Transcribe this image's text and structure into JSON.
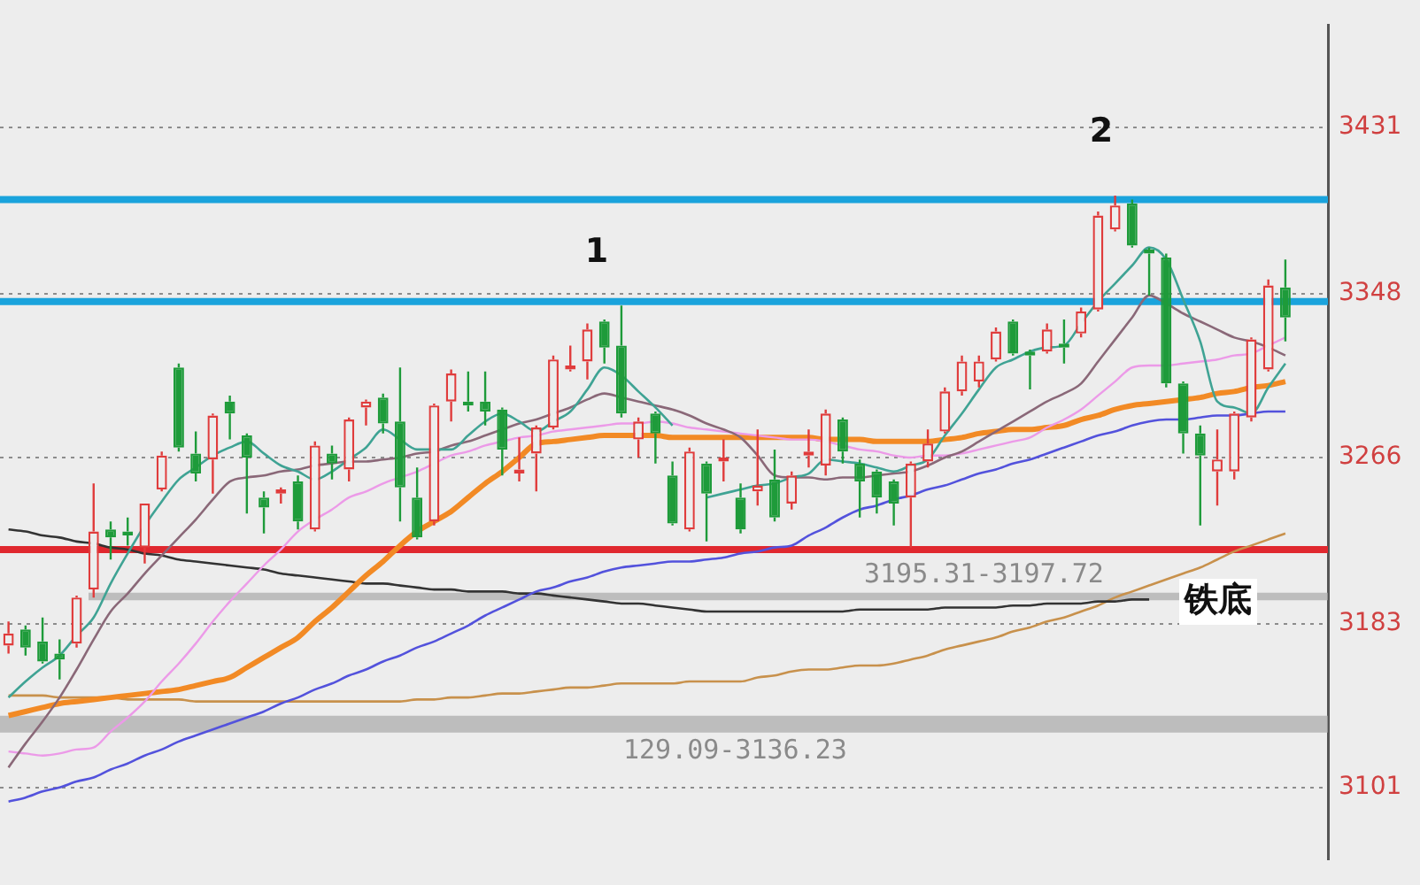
{
  "chart_data": {
    "type": "candlestick",
    "categories": [
      null,
      null,
      null,
      null,
      null,
      null,
      null,
      null,
      null,
      null,
      null,
      null,
      null,
      null,
      null,
      null,
      null,
      null,
      null,
      null,
      null,
      null,
      null,
      null,
      null,
      null,
      null,
      null,
      null,
      null,
      null,
      null,
      null,
      null,
      null,
      null,
      null,
      null,
      null,
      null,
      null,
      null,
      null,
      null,
      null,
      null,
      null,
      null,
      null,
      null,
      null,
      null,
      null,
      null,
      null,
      null,
      null,
      null,
      null,
      null,
      null,
      null,
      null,
      null,
      null,
      null,
      null,
      null,
      null,
      null,
      null,
      null,
      null,
      null,
      null,
      null,
      null,
      null
    ],
    "ohlc": [
      [
        3172,
        3184,
        3168,
        3178
      ],
      [
        3180,
        3182,
        3167,
        3171
      ],
      [
        3174,
        3186,
        3163,
        3164
      ],
      [
        3168,
        3175,
        3155,
        3165
      ],
      [
        3173,
        3197,
        3171,
        3196
      ],
      [
        3200,
        3253,
        3196,
        3229
      ],
      [
        3230,
        3234,
        3215,
        3226
      ],
      [
        3229,
        3236,
        3222,
        3227
      ],
      [
        3221,
        3243,
        3213,
        3243
      ],
      [
        3250,
        3269,
        3249,
        3267
      ],
      [
        3311,
        3313,
        3269,
        3271
      ],
      [
        3268,
        3279,
        3254,
        3258
      ],
      [
        3265,
        3288,
        3248,
        3287
      ],
      [
        3294,
        3297,
        3275,
        3288
      ],
      [
        3277,
        3278,
        3238,
        3266
      ],
      [
        3246,
        3249,
        3228,
        3241
      ],
      [
        3248,
        3251,
        3243,
        3250
      ],
      [
        3254,
        3257,
        3230,
        3234
      ],
      [
        3230,
        3274,
        3229,
        3272
      ],
      [
        3268,
        3272,
        3255,
        3263
      ],
      [
        3260,
        3286,
        3254,
        3285
      ],
      [
        3291,
        3295,
        3282,
        3294
      ],
      [
        3296,
        3298,
        3278,
        3283
      ],
      [
        3284,
        3311,
        3234,
        3251
      ],
      [
        3246,
        3261,
        3225,
        3226
      ],
      [
        3234,
        3293,
        3232,
        3292
      ],
      [
        3294,
        3310,
        3284,
        3308
      ],
      [
        3294,
        3309,
        3289,
        3292
      ],
      [
        3294,
        3309,
        3282,
        3289
      ],
      [
        3290,
        3291,
        3257,
        3270
      ],
      [
        3258,
        3276,
        3254,
        3260
      ],
      [
        3268,
        3282,
        3249,
        3281
      ],
      [
        3281,
        3317,
        3280,
        3315
      ],
      [
        3310,
        3322,
        3309,
        3312
      ],
      [
        3314,
        3333,
        3305,
        3330
      ],
      [
        3334,
        3335,
        3313,
        3321
      ],
      [
        3322,
        3342,
        3286,
        3288
      ],
      [
        3275,
        3286,
        3266,
        3284
      ],
      [
        3288,
        3289,
        3263,
        3278
      ],
      [
        3257,
        3264,
        3232,
        3233
      ],
      [
        3230,
        3271,
        3229,
        3269
      ],
      [
        3263,
        3264,
        3224,
        3248
      ],
      [
        3264,
        3275,
        3254,
        3266
      ],
      [
        3246,
        3253,
        3228,
        3230
      ],
      [
        3249,
        3280,
        3242,
        3252
      ],
      [
        3255,
        3270,
        3234,
        3236
      ],
      [
        3243,
        3259,
        3240,
        3257
      ],
      [
        3267,
        3280,
        3261,
        3269
      ],
      [
        3262,
        3290,
        3257,
        3288
      ],
      [
        3285,
        3286,
        3263,
        3269
      ],
      [
        3263,
        3265,
        3236,
        3254
      ],
      [
        3259,
        3260,
        3238,
        3246
      ],
      [
        3254,
        3255,
        3232,
        3243
      ],
      [
        3246,
        3264,
        3221,
        3263
      ],
      [
        3264,
        3280,
        3261,
        3273
      ],
      [
        3279,
        3301,
        3278,
        3299
      ],
      [
        3299,
        3317,
        3297,
        3314
      ],
      [
        3304,
        3317,
        3301,
        3314
      ],
      [
        3315,
        3331,
        3314,
        3329
      ],
      [
        3334,
        3335,
        3317,
        3318
      ],
      [
        3319,
        3320,
        3300,
        3317
      ],
      [
        3319,
        3333,
        3318,
        3330
      ],
      [
        3323,
        3335,
        3313,
        3321
      ],
      [
        3328,
        3341,
        3326,
        3339
      ],
      [
        3340,
        3389,
        3339,
        3387
      ],
      [
        3380,
        3397,
        3379,
        3392
      ],
      [
        3393,
        3395,
        3371,
        3372
      ],
      [
        3370,
        3371,
        3347,
        3368
      ],
      [
        3366,
        3368,
        3301,
        3303
      ],
      [
        3303,
        3304,
        3268,
        3278
      ],
      [
        3278,
        3282,
        3232,
        3267
      ],
      [
        3259,
        3280,
        3242,
        3265
      ],
      [
        3259,
        3289,
        3255,
        3288
      ],
      [
        3286,
        3326,
        3284,
        3325
      ],
      [
        3310,
        3355,
        3309,
        3352
      ],
      [
        3351,
        3365,
        3324,
        3336
      ],
      null,
      null
    ],
    "colors": [
      "#e03c3c",
      "#1e9b3a",
      "#1e9b3a",
      "#1e9b3a",
      "#e03c3c",
      "#e03c3c",
      "#1e9b3a",
      "#1e9b3a",
      "#e03c3c",
      "#e03c3c",
      "#1e9b3a",
      "#1e9b3a",
      "#e03c3c",
      "#1e9b3a",
      "#1e9b3a",
      "#1e9b3a",
      "#e03c3c",
      "#1e9b3a",
      "#e03c3c",
      "#1e9b3a",
      "#e03c3c",
      "#e03c3c",
      "#1e9b3a",
      "#1e9b3a",
      "#1e9b3a",
      "#e03c3c",
      "#e03c3c",
      "#1e9b3a",
      "#1e9b3a",
      "#1e9b3a",
      "#e03c3c",
      "#e03c3c",
      "#e03c3c",
      "#e03c3c",
      "#e03c3c",
      "#1e9b3a",
      "#1e9b3a",
      "#e03c3c",
      "#1e9b3a",
      "#1e9b3a",
      "#e03c3c",
      "#1e9b3a",
      "#e03c3c",
      "#1e9b3a",
      "#e03c3c",
      "#1e9b3a",
      "#e03c3c",
      "#e03c3c",
      "#e03c3c",
      "#1e9b3a",
      "#1e9b3a",
      "#1e9b3a",
      "#1e9b3a",
      "#e03c3c",
      "#e03c3c",
      "#e03c3c",
      "#e03c3c",
      "#e03c3c",
      "#e03c3c",
      "#1e9b3a",
      "#1e9b3a",
      "#e03c3c",
      "#1e9b3a",
      "#e03c3c",
      "#e03c3c",
      "#e03c3c",
      "#1e9b3a",
      "#1e9b3a",
      "#1e9b3a",
      "#1e9b3a",
      "#1e9b3a",
      "#e03c3c",
      "#e03c3c",
      "#e03c3c",
      "#e03c3c",
      "#1e9b3a",
      null,
      null
    ],
    "series": [
      {
        "type": "line",
        "color": "#3fa394",
        "values": [
          3146,
          3154,
          3161,
          3167,
          3177,
          3186,
          3203,
          3218,
          3232,
          3244,
          3255,
          3261,
          3267,
          3271,
          3274,
          3268,
          3262,
          3259,
          3255,
          3259,
          3265,
          3271,
          3280,
          3275,
          3270,
          3270,
          3270,
          3277,
          3284,
          3288,
          3284,
          3279,
          3284,
          3289,
          3300,
          3311,
          3307,
          3299,
          3291,
          3282,
          null,
          3246,
          3248,
          3250,
          3252,
          3253,
          3256,
          3258,
          3265,
          3264,
          3263,
          3261,
          3259,
          3262,
          3265,
          3277,
          3288,
          3300,
          3311,
          3315,
          3319,
          3321,
          3322,
          3333,
          3344,
          3353,
          3362,
          3371,
          3365,
          3345,
          3324,
          3294,
          3291,
          3288,
          3301,
          3313,
          null,
          null
        ]
      },
      {
        "type": "line",
        "color": "#8a6878",
        "values": [
          3111,
          3123,
          3134,
          3146,
          3160,
          3175,
          3189,
          3198,
          3208,
          3217,
          3226,
          3235,
          3245,
          3254,
          3256,
          3257,
          3259,
          3260,
          3262,
          3263,
          3264,
          3264,
          3265,
          3266,
          3268,
          3269,
          3272,
          3274,
          3277,
          3280,
          3283,
          3285,
          3288,
          3291,
          3295,
          3298,
          3296,
          3294,
          3292,
          3290,
          3287,
          3283,
          3280,
          3276,
          3267,
          3257,
          3256,
          3256,
          3255,
          3256,
          3256,
          3257,
          3258,
          3259,
          3262,
          3266,
          3269,
          3274,
          3279,
          3284,
          3289,
          3294,
          3298,
          3303,
          3314,
          3325,
          3336,
          3347,
          3343,
          3338,
          3334,
          3330,
          3326,
          3324,
          3321,
          3317,
          null,
          null
        ]
      },
      {
        "type": "line",
        "color": "#ec9ae8",
        "values": [
          3119,
          3118,
          3117,
          3118,
          3120,
          3121,
          3129,
          3136,
          3144,
          3154,
          3163,
          3173,
          3184,
          3194,
          3203,
          3212,
          3220,
          3229,
          3235,
          3240,
          3246,
          3249,
          3253,
          3256,
          3259,
          3263,
          3267,
          3269,
          3272,
          3274,
          3276,
          3277,
          3279,
          3280,
          3281,
          3282,
          3283,
          3283,
          3284,
          3283,
          3281,
          3280,
          3279,
          3278,
          3277,
          3276,
          3275,
          3275,
          3274,
          3272,
          3270,
          3269,
          3267,
          3266,
          3267,
          3267,
          3268,
          3270,
          3272,
          3274,
          3276,
          3281,
          3285,
          3290,
          3297,
          3304,
          3311,
          3312,
          3312,
          3313,
          3314,
          3315,
          3317,
          3318,
          3322,
          3326,
          null,
          null
        ]
      },
      {
        "type": "line",
        "color": "#f28a25",
        "values": [
          3137,
          3139,
          3141,
          3143,
          3144,
          3145,
          3146,
          3147,
          3148,
          3149,
          3150,
          3152,
          3154,
          3156,
          3161,
          3166,
          3171,
          3176,
          3184,
          3191,
          3199,
          3207,
          3214,
          3222,
          3229,
          3234,
          3239,
          3246,
          3253,
          3259,
          3266,
          3273,
          3274,
          3275,
          3276,
          3277,
          3277,
          3277,
          3277,
          3276,
          3276,
          3276,
          3276,
          3276,
          3276,
          3276,
          3276,
          3276,
          3275,
          3275,
          3275,
          3274,
          3274,
          3274,
          3274,
          3275,
          3276,
          3278,
          3279,
          3280,
          3280,
          3281,
          3282,
          3285,
          3287,
          3290,
          3292,
          3293,
          3294,
          3295,
          3296,
          3298,
          3299,
          3301,
          3302,
          3304,
          null,
          null
        ]
      },
      {
        "type": "line",
        "color": "#5352dc",
        "values": [
          3094,
          3096,
          3099,
          3101,
          3104,
          3106,
          3110,
          3113,
          3117,
          3120,
          3124,
          3127,
          3130,
          3133,
          3136,
          3139,
          3143,
          3146,
          3150,
          3153,
          3157,
          3160,
          3164,
          3167,
          3171,
          3174,
          3178,
          3182,
          3187,
          3191,
          3195,
          3199,
          3201,
          3204,
          3206,
          3209,
          3211,
          3212,
          3213,
          3214,
          3214,
          3215,
          3216,
          3218,
          3219,
          3221,
          3222,
          3227,
          3231,
          3236,
          3240,
          3242,
          3245,
          3247,
          3250,
          3252,
          3255,
          3258,
          3260,
          3263,
          3265,
          3268,
          3271,
          3274,
          3277,
          3279,
          3282,
          3284,
          3285,
          3285,
          3286,
          3287,
          3287,
          3288,
          3289,
          3289,
          null,
          null
        ]
      },
      {
        "type": "line",
        "color": "#333333",
        "values": [
          3230,
          3229,
          3227,
          3226,
          3224,
          3223,
          3221,
          3220,
          3218,
          3217,
          3215,
          3214,
          3213,
          3212,
          3211,
          3210,
          3208,
          3207,
          3206,
          3205,
          3204,
          3203,
          3203,
          3202,
          3201,
          3200,
          3200,
          3199,
          3199,
          3199,
          3198,
          3198,
          3197,
          3196,
          3195,
          3194,
          3193,
          3193,
          3192,
          3191,
          3190,
          3189,
          3189,
          3189,
          3189,
          3189,
          3189,
          3189,
          3189,
          3189,
          3190,
          3190,
          3190,
          3190,
          3190,
          3191,
          3191,
          3191,
          3191,
          3192,
          3192,
          3193,
          3193,
          3193,
          3194,
          3194,
          3195,
          3195,
          null,
          null,
          null,
          null,
          null,
          null,
          null,
          null,
          null,
          null
        ]
      },
      {
        "type": "line",
        "color": "#c8914c",
        "values": [
          3147,
          3147,
          3147,
          3146,
          3146,
          3146,
          3146,
          3145,
          3145,
          3145,
          3145,
          3144,
          3144,
          3144,
          3144,
          3144,
          3144,
          3144,
          3144,
          3144,
          3144,
          3144,
          3144,
          3144,
          3145,
          3145,
          3146,
          3146,
          3147,
          3148,
          3148,
          3149,
          3150,
          3151,
          3151,
          3152,
          3153,
          3153,
          3153,
          3153,
          3154,
          3154,
          3154,
          3154,
          3156,
          3157,
          3159,
          3160,
          3160,
          3161,
          3162,
          3162,
          3163,
          3165,
          3167,
          3170,
          3172,
          3174,
          3176,
          3179,
          3181,
          3184,
          3186,
          3189,
          3192,
          3196,
          3199,
          3202,
          3205,
          3208,
          3211,
          3215,
          3219,
          3222,
          3225,
          3228,
          null,
          null
        ]
      }
    ],
    "ylim": [
      3065,
      3482
    ],
    "yticks": [
      3101,
      3183,
      3266,
      3348,
      3431
    ],
    "grid": "y",
    "legend": false,
    "tick_labels": "y",
    "ref_lines": [
      {
        "axis": "y",
        "value": 3395,
        "color": "#1aa3dc"
      },
      {
        "axis": "y",
        "value": 3344,
        "color": "#1aa3dc"
      },
      {
        "axis": "y",
        "value": 3220,
        "color": "#e0282f"
      }
    ],
    "bands": [
      {
        "axis": "y",
        "from": 3195.31,
        "to": 3197.72,
        "label": "3195.31-3197.72",
        "color": "#a8a8a8"
      },
      {
        "axis": "y",
        "from": 3129.09,
        "to": 3136.23,
        "label": "129.09-3136.23",
        "color": "#a8a8a8"
      }
    ],
    "annotations": [
      "1",
      "2",
      "铁底"
    ]
  }
}
